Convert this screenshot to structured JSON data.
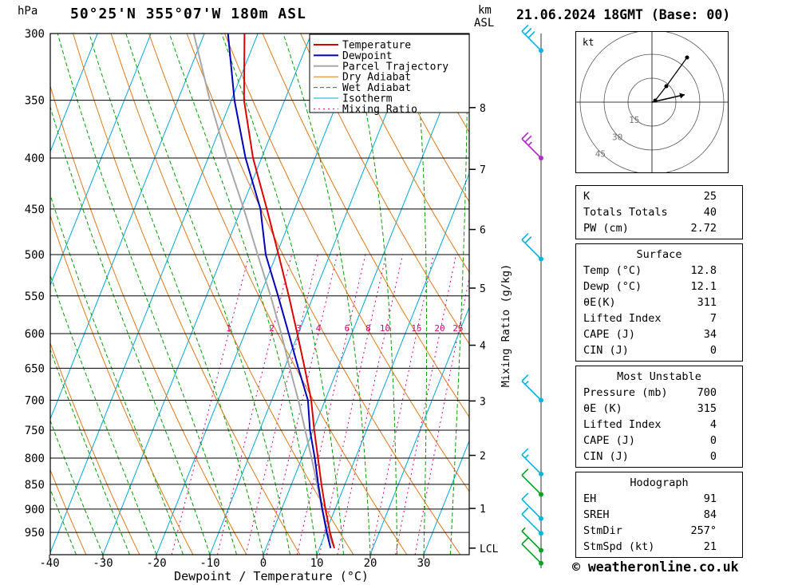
{
  "header": {
    "pressure_unit": "hPa",
    "station": "50°25'N 355°07'W 180m ASL",
    "km_label": "km",
    "asl_label": "ASL",
    "datetime": "21.06.2024 18GMT (Base: 00)"
  },
  "chart_data": {
    "type": "skewt_log_p_sounding",
    "x_axis": {
      "label": "Dewpoint / Temperature (°C)",
      "ticks_c": [
        -40,
        -30,
        -20,
        -10,
        0,
        10,
        20,
        30
      ]
    },
    "pressure_axis": {
      "unit": "hPa",
      "scale": "log",
      "top_hpa": 300,
      "bottom_hpa": 1000,
      "ticks_hpa": [
        300,
        350,
        400,
        450,
        500,
        550,
        600,
        650,
        700,
        750,
        800,
        850,
        900,
        950
      ]
    },
    "altitude_axis": {
      "unit": "km ASL",
      "ticks_km": [
        1,
        2,
        3,
        4,
        5,
        6,
        7,
        8
      ],
      "lcl_label": "LCL",
      "lcl_pressure_hpa": 985
    },
    "mixing_ratio": {
      "axis_label": "Mixing Ratio (g/kg)",
      "lines_g_kg": [
        1,
        2,
        3,
        4,
        6,
        8,
        10,
        15,
        20,
        25
      ]
    },
    "background": {
      "isotherm_step_c": 10,
      "dry_adiabat_step_k": 10,
      "wet_adiabat_surface_temps_c": [
        -40,
        -35,
        -30,
        -25,
        -20,
        -15,
        -10,
        -5,
        0,
        5,
        10,
        15,
        20,
        25,
        30,
        35
      ]
    },
    "legend": [
      {
        "label": "Temperature",
        "color": "#dd0000",
        "width": 2,
        "dash": ""
      },
      {
        "label": "Dewpoint",
        "color": "#0000bb",
        "width": 2,
        "dash": ""
      },
      {
        "label": "Parcel Trajectory",
        "color": "#a8a8a8",
        "width": 2,
        "dash": ""
      },
      {
        "label": "Dry Adiabat",
        "color": "#e07818",
        "width": 1,
        "dash": ""
      },
      {
        "label": "Wet Adiabat",
        "color": "#00a000",
        "width": 1,
        "dash": "5,3"
      },
      {
        "label": "Isotherm",
        "color": "#00a8d8",
        "width": 1,
        "dash": ""
      },
      {
        "label": "Mixing Ratio",
        "color": "#dd0077",
        "width": 1,
        "dash": "2,4"
      }
    ],
    "series": {
      "temperature_c": [
        [
          985,
          12.8
        ],
        [
          950,
          10.8
        ],
        [
          900,
          8.2
        ],
        [
          850,
          5.6
        ],
        [
          800,
          3.0
        ],
        [
          750,
          0.2
        ],
        [
          700,
          -2.6
        ],
        [
          650,
          -6.2
        ],
        [
          600,
          -10.2
        ],
        [
          550,
          -14.6
        ],
        [
          500,
          -19.6
        ],
        [
          450,
          -25.2
        ],
        [
          400,
          -31.6
        ],
        [
          350,
          -37.6
        ],
        [
          300,
          -42.5
        ]
      ],
      "dewpoint_c": [
        [
          985,
          12.1
        ],
        [
          950,
          10.2
        ],
        [
          900,
          7.6
        ],
        [
          850,
          5.0
        ],
        [
          800,
          2.4
        ],
        [
          750,
          -0.6
        ],
        [
          700,
          -3.2
        ],
        [
          650,
          -7.4
        ],
        [
          600,
          -11.8
        ],
        [
          550,
          -16.6
        ],
        [
          500,
          -22.0
        ],
        [
          450,
          -26.4
        ],
        [
          400,
          -33.0
        ],
        [
          350,
          -39.4
        ],
        [
          300,
          -45.6
        ]
      ],
      "parcel_c": [
        [
          985,
          12.8
        ],
        [
          950,
          10.4
        ],
        [
          900,
          7.6
        ],
        [
          850,
          4.8
        ],
        [
          800,
          1.8
        ],
        [
          750,
          -1.5
        ],
        [
          700,
          -5.0
        ],
        [
          650,
          -9.0
        ],
        [
          600,
          -13.2
        ],
        [
          550,
          -18.0
        ],
        [
          500,
          -23.5
        ],
        [
          450,
          -29.5
        ],
        [
          400,
          -36.5
        ],
        [
          350,
          -44.0
        ],
        [
          300,
          -52.0
        ]
      ]
    },
    "wind_barbs": [
      {
        "p": 312,
        "speed_kt": 30,
        "color": "#00b4e4"
      },
      {
        "p": 400,
        "speed_kt": 25,
        "color": "#b428d2"
      },
      {
        "p": 505,
        "speed_kt": 20,
        "color": "#00b4e4"
      },
      {
        "p": 700,
        "speed_kt": 15,
        "color": "#00b4e4"
      },
      {
        "p": 830,
        "speed_kt": 15,
        "color": "#00b4e4"
      },
      {
        "p": 870,
        "speed_kt": 10,
        "color": "#00a41e"
      },
      {
        "p": 920,
        "speed_kt": 10,
        "color": "#00b4e4"
      },
      {
        "p": 952,
        "speed_kt": 10,
        "color": "#00b4e4"
      },
      {
        "p": 990,
        "speed_kt": 5,
        "color": "#00a41e"
      },
      {
        "p": 1020,
        "speed_kt": 10,
        "color": "#00a41e"
      }
    ]
  },
  "hodograph": {
    "unit_label": "kt",
    "ring_step_kt": 15,
    "ring_labels": [
      "15",
      "30",
      "45"
    ],
    "trace_kt": [
      [
        2,
        1
      ],
      [
        9,
        10
      ],
      [
        22,
        28
      ]
    ],
    "storm_motion_kt": [
      20.5,
      4.7
    ]
  },
  "tables": [
    {
      "title": "",
      "rows": [
        [
          "K",
          "25"
        ],
        [
          "Totals Totals",
          "40"
        ],
        [
          "PW (cm)",
          "2.72"
        ]
      ]
    },
    {
      "title": "Surface",
      "rows": [
        [
          "Temp (°C)",
          "12.8"
        ],
        [
          "Dewp (°C)",
          "12.1"
        ],
        [
          "θE(K)",
          "311"
        ],
        [
          "Lifted Index",
          "7"
        ],
        [
          "CAPE (J)",
          "34"
        ],
        [
          "CIN (J)",
          "0"
        ]
      ]
    },
    {
      "title": "Most Unstable",
      "rows": [
        [
          "Pressure (mb)",
          "700"
        ],
        [
          "θE (K)",
          "315"
        ],
        [
          "Lifted Index",
          "4"
        ],
        [
          "CAPE (J)",
          "0"
        ],
        [
          "CIN (J)",
          "0"
        ]
      ]
    },
    {
      "title": "Hodograph",
      "rows": [
        [
          "EH",
          "91"
        ],
        [
          "SREH",
          "84"
        ],
        [
          "StmDir",
          "257°"
        ],
        [
          "StmSpd (kt)",
          "21"
        ]
      ]
    }
  ],
  "footer": {
    "copyright": "© weatheronline.co.uk"
  }
}
